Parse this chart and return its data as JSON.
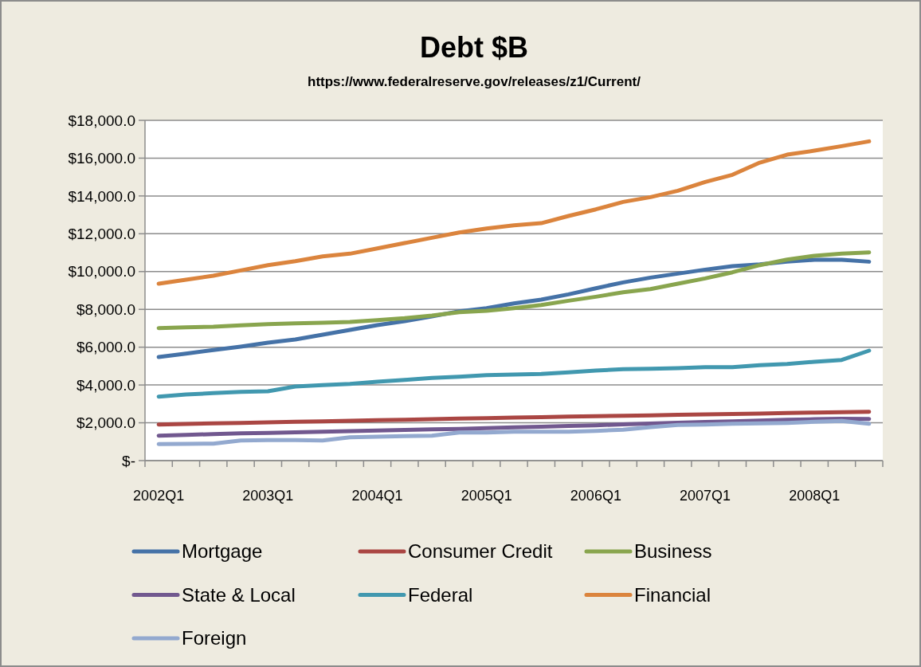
{
  "chart_data": {
    "type": "line",
    "title": "Debt $B",
    "subtitle": "https://www.federalreserve.gov/releases/z1/Current/",
    "categories": [
      "2002Q1",
      null,
      null,
      null,
      "2003Q1",
      null,
      null,
      null,
      "2004Q1",
      null,
      null,
      null,
      "2005Q1",
      null,
      null,
      null,
      "2006Q1",
      null,
      null,
      null,
      "2007Q1",
      null,
      null,
      null,
      "2008Q1",
      null,
      null
    ],
    "series": [
      {
        "name": "Mortgage",
        "color": "#4572a7",
        "values": [
          5480,
          5662,
          5845,
          6028,
          6238,
          6407,
          6660,
          6913,
          7166,
          7377,
          7630,
          7897,
          8065,
          8318,
          8514,
          8795,
          9118,
          9428,
          9680,
          9891,
          10102,
          10285,
          10383,
          10523,
          10622,
          10622,
          10523
        ]
      },
      {
        "name": "Consumer Credit",
        "color": "#aa4643",
        "values": [
          1911,
          1939,
          1967,
          1995,
          2023,
          2051,
          2079,
          2107,
          2135,
          2163,
          2191,
          2219,
          2247,
          2276,
          2300,
          2324,
          2348,
          2372,
          2396,
          2420,
          2444,
          2468,
          2492,
          2516,
          2540,
          2564,
          2585
        ]
      },
      {
        "name": "Business",
        "color": "#89a54e",
        "values": [
          7011,
          7053,
          7081,
          7151,
          7222,
          7264,
          7292,
          7334,
          7432,
          7531,
          7671,
          7854,
          7924,
          8065,
          8233,
          8458,
          8669,
          8908,
          9076,
          9357,
          9638,
          9961,
          10341,
          10636,
          10833,
          10945,
          11015
        ]
      },
      {
        "name": "State & Local",
        "color": "#71588f",
        "values": [
          1321,
          1360,
          1400,
          1440,
          1470,
          1500,
          1530,
          1560,
          1590,
          1620,
          1650,
          1680,
          1720,
          1760,
          1790,
          1830,
          1870,
          1920,
          1960,
          2000,
          2040,
          2080,
          2120,
          2160,
          2190,
          2210,
          2200
        ]
      },
      {
        "name": "Federal",
        "color": "#4198af",
        "values": [
          3386,
          3498,
          3569,
          3639,
          3667,
          3920,
          3990,
          4060,
          4173,
          4271,
          4370,
          4440,
          4524,
          4552,
          4580,
          4665,
          4763,
          4833,
          4861,
          4889,
          4946,
          4946,
          5044,
          5114,
          5227,
          5325,
          5817
        ]
      },
      {
        "name": "Financial",
        "color": "#db843d",
        "values": [
          9357,
          9568,
          9779,
          10060,
          10341,
          10552,
          10804,
          10945,
          11226,
          11507,
          11788,
          12068,
          12280,
          12448,
          12560,
          12940,
          13291,
          13685,
          13938,
          14275,
          14740,
          15120,
          15764,
          16186,
          16396,
          16635,
          16888
        ]
      },
      {
        "name": "Foreign",
        "color": "#93a9cf",
        "values": [
          871,
          885,
          899,
          1068,
          1082,
          1082,
          1068,
          1236,
          1264,
          1292,
          1321,
          1489,
          1489,
          1531,
          1531,
          1531,
          1574,
          1630,
          1770,
          1883,
          1911,
          1953,
          1967,
          1995,
          2051,
          2093,
          1953
        ]
      }
    ],
    "ylim": [
      0,
      18000
    ],
    "yticks": [
      {
        "value": 0,
        "label": "$-"
      },
      {
        "value": 2000,
        "label": "$2,000.0"
      },
      {
        "value": 4000,
        "label": "$4,000.0"
      },
      {
        "value": 6000,
        "label": "$6,000.0"
      },
      {
        "value": 8000,
        "label": "$8,000.0"
      },
      {
        "value": 10000,
        "label": "$10,000.0"
      },
      {
        "value": 12000,
        "label": "$12,000.0"
      },
      {
        "value": 14000,
        "label": "$14,000.0"
      },
      {
        "value": 16000,
        "label": "$16,000.0"
      },
      {
        "value": 18000,
        "label": "$18,000.0"
      }
    ],
    "grid": "y",
    "legend": "bottom",
    "marker": "none",
    "line_style": "solid"
  }
}
